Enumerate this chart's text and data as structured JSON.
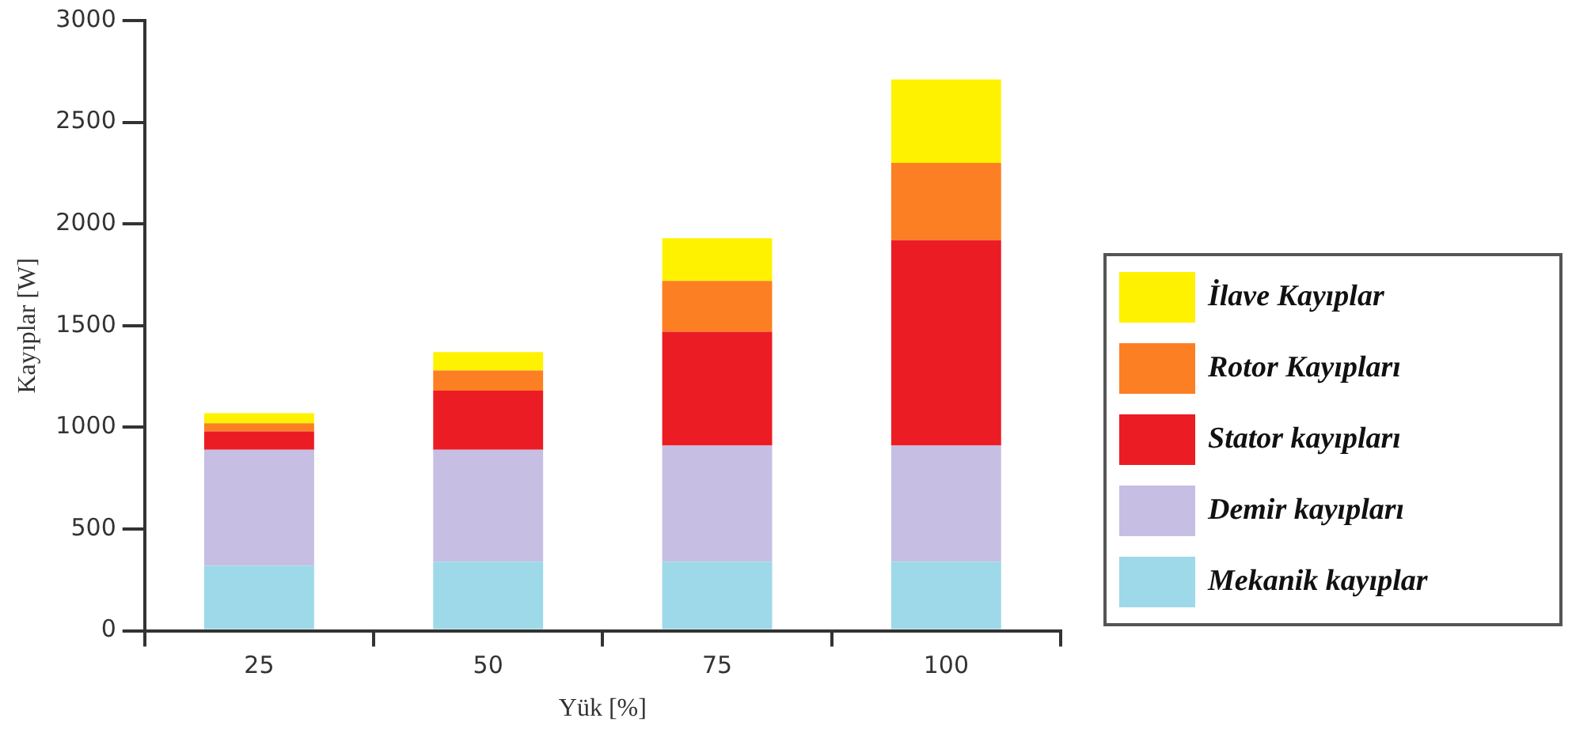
{
  "chart_data": {
    "type": "bar",
    "stacked": true,
    "xlabel": "Yük [%]",
    "ylabel": "Kayıplar [W]",
    "categories": [
      "25",
      "50",
      "75",
      "100"
    ],
    "series": [
      {
        "name": "Mekanik kayıplar",
        "color": "#9dd9e8",
        "values": [
          320,
          340,
          340,
          340
        ]
      },
      {
        "name": "Demir kayıpları",
        "color": "#c6bfe3",
        "values": [
          570,
          550,
          570,
          570
        ]
      },
      {
        "name": "Stator kayıpları",
        "color": "#ec1c24",
        "values": [
          90,
          290,
          560,
          1010
        ]
      },
      {
        "name": "Rotor Kayıpları",
        "color": "#fd7f23",
        "values": [
          40,
          100,
          250,
          380
        ]
      },
      {
        "name": "İlave Kayıplar",
        "color": "#fff200",
        "values": [
          50,
          90,
          210,
          410
        ]
      }
    ],
    "ylim": [
      0,
      3000
    ],
    "yticks": [
      0,
      500,
      1000,
      1500,
      2000,
      2500,
      3000
    ],
    "legend": "right"
  }
}
